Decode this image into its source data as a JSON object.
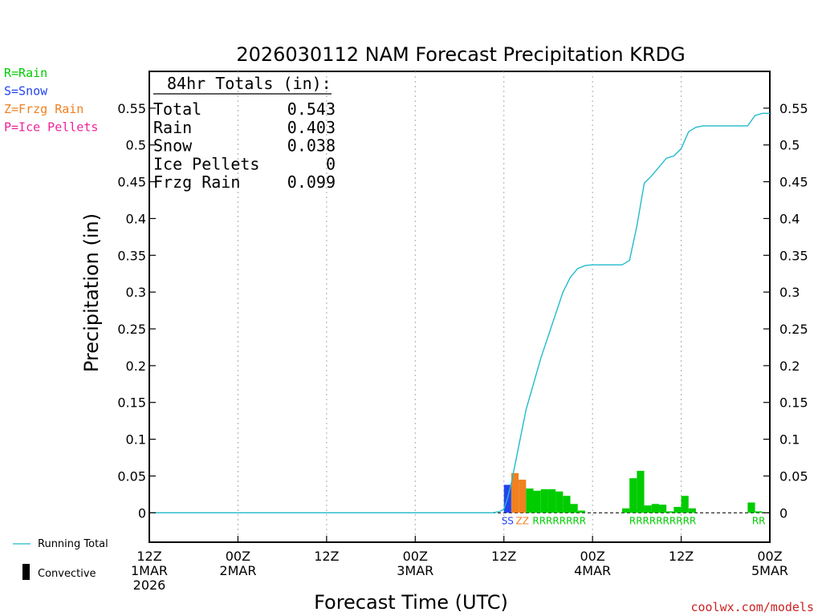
{
  "chart_data": {
    "type": "bar",
    "title": "2026030112 NAM Forecast Precipitation KRDG",
    "xlabel": "Forecast Time (UTC)",
    "ylabel": "Precipitation (in)",
    "ylim": [
      -0.04,
      0.6
    ],
    "xlim_hours": [
      0,
      84
    ],
    "y_ticks": [
      "0",
      "0.05",
      "0.1",
      "0.15",
      "0.2",
      "0.25",
      "0.3",
      "0.35",
      "0.4",
      "0.45",
      "0.5",
      "0.55"
    ],
    "y_tick_values": [
      0,
      0.05,
      0.1,
      0.15,
      0.2,
      0.25,
      0.3,
      0.35,
      0.4,
      0.45,
      0.5,
      0.55
    ],
    "x_ticks": [
      {
        "hour": 0,
        "line1": "12Z",
        "line2": "1MAR",
        "line3": "2026"
      },
      {
        "hour": 12,
        "line1": "00Z",
        "line2": "2MAR",
        "line3": ""
      },
      {
        "hour": 24,
        "line1": "12Z",
        "line2": "",
        "line3": ""
      },
      {
        "hour": 36,
        "line1": "00Z",
        "line2": "3MAR",
        "line3": ""
      },
      {
        "hour": 48,
        "line1": "12Z",
        "line2": "",
        "line3": ""
      },
      {
        "hour": 60,
        "line1": "00Z",
        "line2": "4MAR",
        "line3": ""
      },
      {
        "hour": 72,
        "line1": "12Z",
        "line2": "",
        "line3": ""
      },
      {
        "hour": 84,
        "line1": "00Z",
        "line2": "5MAR",
        "line3": ""
      }
    ],
    "bars": [
      {
        "hour": 49,
        "value": 0.038,
        "type": "S"
      },
      {
        "hour": 50,
        "value": 0.054,
        "type": "Z"
      },
      {
        "hour": 51,
        "value": 0.045,
        "type": "Z"
      },
      {
        "hour": 52,
        "value": 0.033,
        "type": "R"
      },
      {
        "hour": 53,
        "value": 0.03,
        "type": "R"
      },
      {
        "hour": 54,
        "value": 0.032,
        "type": "R"
      },
      {
        "hour": 55,
        "value": 0.032,
        "type": "R"
      },
      {
        "hour": 56,
        "value": 0.029,
        "type": "R"
      },
      {
        "hour": 57,
        "value": 0.023,
        "type": "R"
      },
      {
        "hour": 58,
        "value": 0.012,
        "type": "R"
      },
      {
        "hour": 59,
        "value": 0.003,
        "type": "R"
      },
      {
        "hour": 65,
        "value": 0.006,
        "type": "R"
      },
      {
        "hour": 66,
        "value": 0.047,
        "type": "R"
      },
      {
        "hour": 67,
        "value": 0.057,
        "type": "R"
      },
      {
        "hour": 68,
        "value": 0.01,
        "type": "R"
      },
      {
        "hour": 69,
        "value": 0.012,
        "type": "R"
      },
      {
        "hour": 70,
        "value": 0.011,
        "type": "R"
      },
      {
        "hour": 71,
        "value": 0.002,
        "type": "R"
      },
      {
        "hour": 72,
        "value": 0.008,
        "type": "R"
      },
      {
        "hour": 73,
        "value": 0.023,
        "type": "R"
      },
      {
        "hour": 74,
        "value": 0.006,
        "type": "R"
      },
      {
        "hour": 82,
        "value": 0.014,
        "type": "R"
      },
      {
        "hour": 83,
        "value": 0.002,
        "type": "R"
      }
    ],
    "running_total": {
      "name": "Running Total",
      "points": [
        [
          0,
          0
        ],
        [
          46.5,
          0
        ],
        [
          47.5,
          0.002
        ],
        [
          48,
          0.005
        ],
        [
          48.5,
          0.02
        ],
        [
          49,
          0.04
        ],
        [
          49.5,
          0.065
        ],
        [
          50,
          0.09
        ],
        [
          51,
          0.14
        ],
        [
          52,
          0.175
        ],
        [
          53,
          0.21
        ],
        [
          54,
          0.24
        ],
        [
          55,
          0.27
        ],
        [
          56,
          0.3
        ],
        [
          57,
          0.32
        ],
        [
          58,
          0.332
        ],
        [
          59,
          0.336
        ],
        [
          60,
          0.337
        ],
        [
          63,
          0.337
        ],
        [
          64,
          0.337
        ],
        [
          65,
          0.343
        ],
        [
          66,
          0.39
        ],
        [
          67,
          0.448
        ],
        [
          68,
          0.458
        ],
        [
          69,
          0.47
        ],
        [
          70,
          0.482
        ],
        [
          71,
          0.485
        ],
        [
          72,
          0.495
        ],
        [
          73,
          0.518
        ],
        [
          74,
          0.524
        ],
        [
          75,
          0.526
        ],
        [
          81,
          0.526
        ],
        [
          82,
          0.54
        ],
        [
          83,
          0.543
        ],
        [
          84,
          0.543
        ]
      ]
    },
    "precip_type_labels": [
      {
        "hour": 49,
        "text": "SS",
        "type": "S"
      },
      {
        "hour": 51,
        "text": "ZZ",
        "type": "Z"
      },
      {
        "hour": 56,
        "text": "RRRRRRRR",
        "type": "R"
      },
      {
        "hour": 70,
        "text": "RRRRRRRRRR",
        "type": "R"
      },
      {
        "hour": 83,
        "text": "RR",
        "type": "R"
      }
    ],
    "totals_box": {
      "header": "84hr Totals (in):",
      "rows": [
        {
          "label": "Total",
          "value": "0.543"
        },
        {
          "label": "Rain",
          "value": "0.403"
        },
        {
          "label": "Snow",
          "value": "0.038"
        },
        {
          "label": "Ice Pellets",
          "value": "0"
        },
        {
          "label": "Frzg Rain",
          "value": "0.099"
        }
      ]
    },
    "type_legend": [
      {
        "text": "R=Rain",
        "type": "R"
      },
      {
        "text": "S=Snow",
        "type": "S"
      },
      {
        "text": "Z=Frzg Rain",
        "type": "Z"
      },
      {
        "text": "P=Ice Pellets",
        "type": "P"
      }
    ],
    "bottom_legend": {
      "running_total": "Running Total",
      "convective": "Convective"
    },
    "credit": "coolwx.com/models",
    "colors": {
      "R": "#00cc00",
      "S": "#2244ee",
      "Z": "#f08020",
      "P": "#ee2299",
      "running_total": "#22bbcc",
      "axis": "#000000",
      "grid": "#aaaaaa",
      "credit": "#cc2222"
    }
  }
}
